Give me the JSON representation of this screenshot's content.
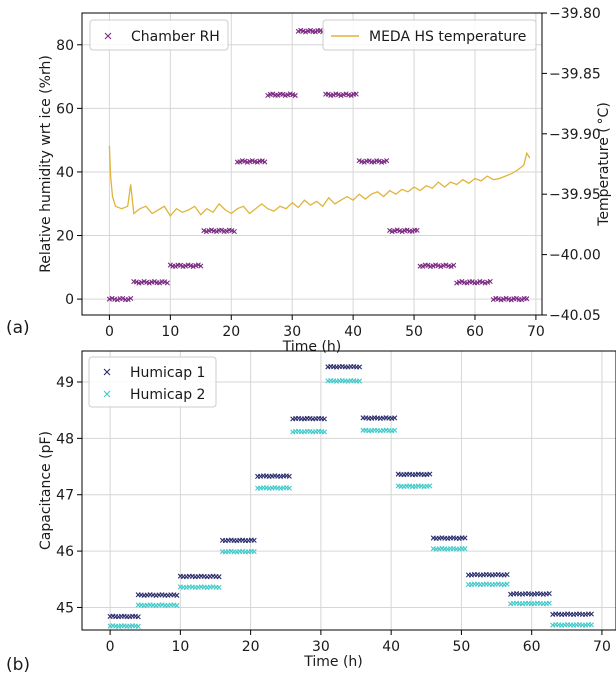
{
  "chart_data": [
    {
      "type": "scatter",
      "panel_label": "(a)",
      "xlabel": "Time (h)",
      "ylabel": "Relative humidity wrt ice (%rh)",
      "y2label": "Temperature ( °C)",
      "xlim": [
        -4.5,
        71
      ],
      "ylim": [
        -5,
        90
      ],
      "y2lim": [
        -40.05,
        -39.8
      ],
      "xticks": [
        0,
        10,
        20,
        30,
        40,
        50,
        60,
        70
      ],
      "yticks": [
        0,
        20,
        40,
        60,
        80
      ],
      "y2ticks": [
        -40.05,
        -40.0,
        -39.95,
        -39.9,
        -39.85,
        -39.8
      ],
      "y2ticklabels": [
        "−40.05",
        "−40.00",
        "−39.95",
        "−39.90",
        "−39.85",
        "−39.80"
      ],
      "grid": true,
      "legend": [
        {
          "name": "Chamber RH",
          "marker": "x",
          "color": "#7b2a83",
          "placement": "top-left"
        },
        {
          "name": "MEDA HS temperature",
          "marker": "line",
          "color": "#e0b43a",
          "placement": "top-right"
        }
      ],
      "series": [
        {
          "name": "Chamber RH",
          "axis": "left",
          "marker": "x",
          "color": "#7b2a83",
          "steps": [
            {
              "x_start": 0.0,
              "x_end": 3.5,
              "y": 0.0
            },
            {
              "x_start": 4.0,
              "x_end": 9.5,
              "y": 5.3
            },
            {
              "x_start": 10.0,
              "x_end": 15.0,
              "y": 10.5
            },
            {
              "x_start": 15.5,
              "x_end": 20.5,
              "y": 21.5
            },
            {
              "x_start": 21.0,
              "x_end": 25.5,
              "y": 43.3
            },
            {
              "x_start": 26.0,
              "x_end": 30.5,
              "y": 64.3
            },
            {
              "x_start": 31.0,
              "x_end": 35.0,
              "y": 84.3
            },
            {
              "x_start": 35.5,
              "x_end": 40.5,
              "y": 64.3
            },
            {
              "x_start": 41.0,
              "x_end": 45.5,
              "y": 43.3
            },
            {
              "x_start": 46.0,
              "x_end": 50.5,
              "y": 21.5
            },
            {
              "x_start": 51.0,
              "x_end": 56.5,
              "y": 10.5
            },
            {
              "x_start": 57.0,
              "x_end": 62.5,
              "y": 5.3
            },
            {
              "x_start": 63.0,
              "x_end": 68.5,
              "y": 0.0
            }
          ]
        },
        {
          "name": "MEDA HS temperature",
          "axis": "right",
          "marker": "line",
          "color": "#e0b43a",
          "x": [
            0.0,
            0.2,
            0.5,
            1,
            2,
            3,
            3.5,
            4,
            5,
            6,
            7,
            8,
            9,
            10,
            11,
            12,
            13,
            14,
            15,
            16,
            17,
            18,
            19,
            20,
            21,
            22,
            23,
            24,
            25,
            26,
            27,
            28,
            29,
            30,
            31,
            32,
            33,
            34,
            35,
            36,
            37,
            38,
            39,
            40,
            41,
            42,
            43,
            44,
            45,
            46,
            47,
            48,
            49,
            50,
            51,
            52,
            53,
            54,
            55,
            56,
            57,
            58,
            59,
            60,
            61,
            62,
            63,
            64,
            65,
            66,
            67,
            68,
            68.5,
            69
          ],
          "y": [
            -39.91,
            -39.935,
            -39.952,
            -39.96,
            -39.962,
            -39.96,
            -39.942,
            -39.966,
            -39.962,
            -39.96,
            -39.966,
            -39.963,
            -39.96,
            -39.968,
            -39.962,
            -39.965,
            -39.963,
            -39.96,
            -39.967,
            -39.962,
            -39.965,
            -39.958,
            -39.963,
            -39.966,
            -39.962,
            -39.96,
            -39.966,
            -39.962,
            -39.958,
            -39.962,
            -39.964,
            -39.96,
            -39.962,
            -39.957,
            -39.961,
            -39.955,
            -39.959,
            -39.956,
            -39.96,
            -39.953,
            -39.958,
            -39.955,
            -39.952,
            -39.955,
            -39.95,
            -39.954,
            -39.95,
            -39.948,
            -39.952,
            -39.947,
            -39.95,
            -39.946,
            -39.948,
            -39.944,
            -39.947,
            -39.943,
            -39.945,
            -39.94,
            -39.944,
            -39.94,
            -39.942,
            -39.938,
            -39.941,
            -39.937,
            -39.939,
            -39.935,
            -39.938,
            -39.937,
            -39.935,
            -39.933,
            -39.93,
            -39.926,
            -39.916,
            -39.92
          ]
        }
      ]
    },
    {
      "type": "scatter",
      "panel_label": "(b)",
      "xlabel": "Time (h)",
      "ylabel": "Capacitance (pF)",
      "xlim": [
        -4,
        72
      ],
      "ylim": [
        44.6,
        49.55
      ],
      "xticks": [
        0,
        10,
        20,
        30,
        40,
        50,
        60,
        70
      ],
      "yticks": [
        45,
        46,
        47,
        48,
        49
      ],
      "grid": true,
      "legend": [
        {
          "name": "Humicap 1",
          "marker": "x",
          "color": "#2b2d6e",
          "placement": "top-left"
        },
        {
          "name": "Humicap 2",
          "marker": "x",
          "color": "#3ec9c9",
          "placement": "top-left"
        }
      ],
      "series": [
        {
          "name": "Humicap 1",
          "marker": "x",
          "color": "#2b2d6e",
          "steps": [
            {
              "x_start": 0.0,
              "x_end": 4.0,
              "y": 44.84
            },
            {
              "x_start": 4.0,
              "x_end": 9.5,
              "y": 45.22
            },
            {
              "x_start": 10.0,
              "x_end": 15.5,
              "y": 45.55
            },
            {
              "x_start": 16.0,
              "x_end": 20.5,
              "y": 46.19
            },
            {
              "x_start": 21.0,
              "x_end": 25.5,
              "y": 47.33
            },
            {
              "x_start": 26.0,
              "x_end": 30.5,
              "y": 48.35
            },
            {
              "x_start": 31.0,
              "x_end": 35.5,
              "y": 49.27
            },
            {
              "x_start": 36.0,
              "x_end": 40.5,
              "y": 48.36
            },
            {
              "x_start": 41.0,
              "x_end": 45.5,
              "y": 47.36
            },
            {
              "x_start": 46.0,
              "x_end": 50.5,
              "y": 46.23
            },
            {
              "x_start": 51.0,
              "x_end": 56.5,
              "y": 45.58
            },
            {
              "x_start": 57.0,
              "x_end": 62.5,
              "y": 45.24
            },
            {
              "x_start": 63.0,
              "x_end": 68.5,
              "y": 44.88
            }
          ]
        },
        {
          "name": "Humicap 2",
          "marker": "x",
          "color": "#3ec9c9",
          "steps": [
            {
              "x_start": 0.0,
              "x_end": 4.0,
              "y": 44.67
            },
            {
              "x_start": 4.0,
              "x_end": 9.5,
              "y": 45.04
            },
            {
              "x_start": 10.0,
              "x_end": 15.5,
              "y": 45.36
            },
            {
              "x_start": 16.0,
              "x_end": 20.5,
              "y": 45.99
            },
            {
              "x_start": 21.0,
              "x_end": 25.5,
              "y": 47.12
            },
            {
              "x_start": 26.0,
              "x_end": 30.5,
              "y": 48.12
            },
            {
              "x_start": 31.0,
              "x_end": 35.5,
              "y": 49.02
            },
            {
              "x_start": 36.0,
              "x_end": 40.5,
              "y": 48.14
            },
            {
              "x_start": 41.0,
              "x_end": 45.5,
              "y": 47.15
            },
            {
              "x_start": 46.0,
              "x_end": 50.5,
              "y": 46.04
            },
            {
              "x_start": 51.0,
              "x_end": 56.5,
              "y": 45.41
            },
            {
              "x_start": 57.0,
              "x_end": 62.5,
              "y": 45.07
            },
            {
              "x_start": 63.0,
              "x_end": 68.5,
              "y": 44.69
            }
          ]
        }
      ]
    }
  ]
}
